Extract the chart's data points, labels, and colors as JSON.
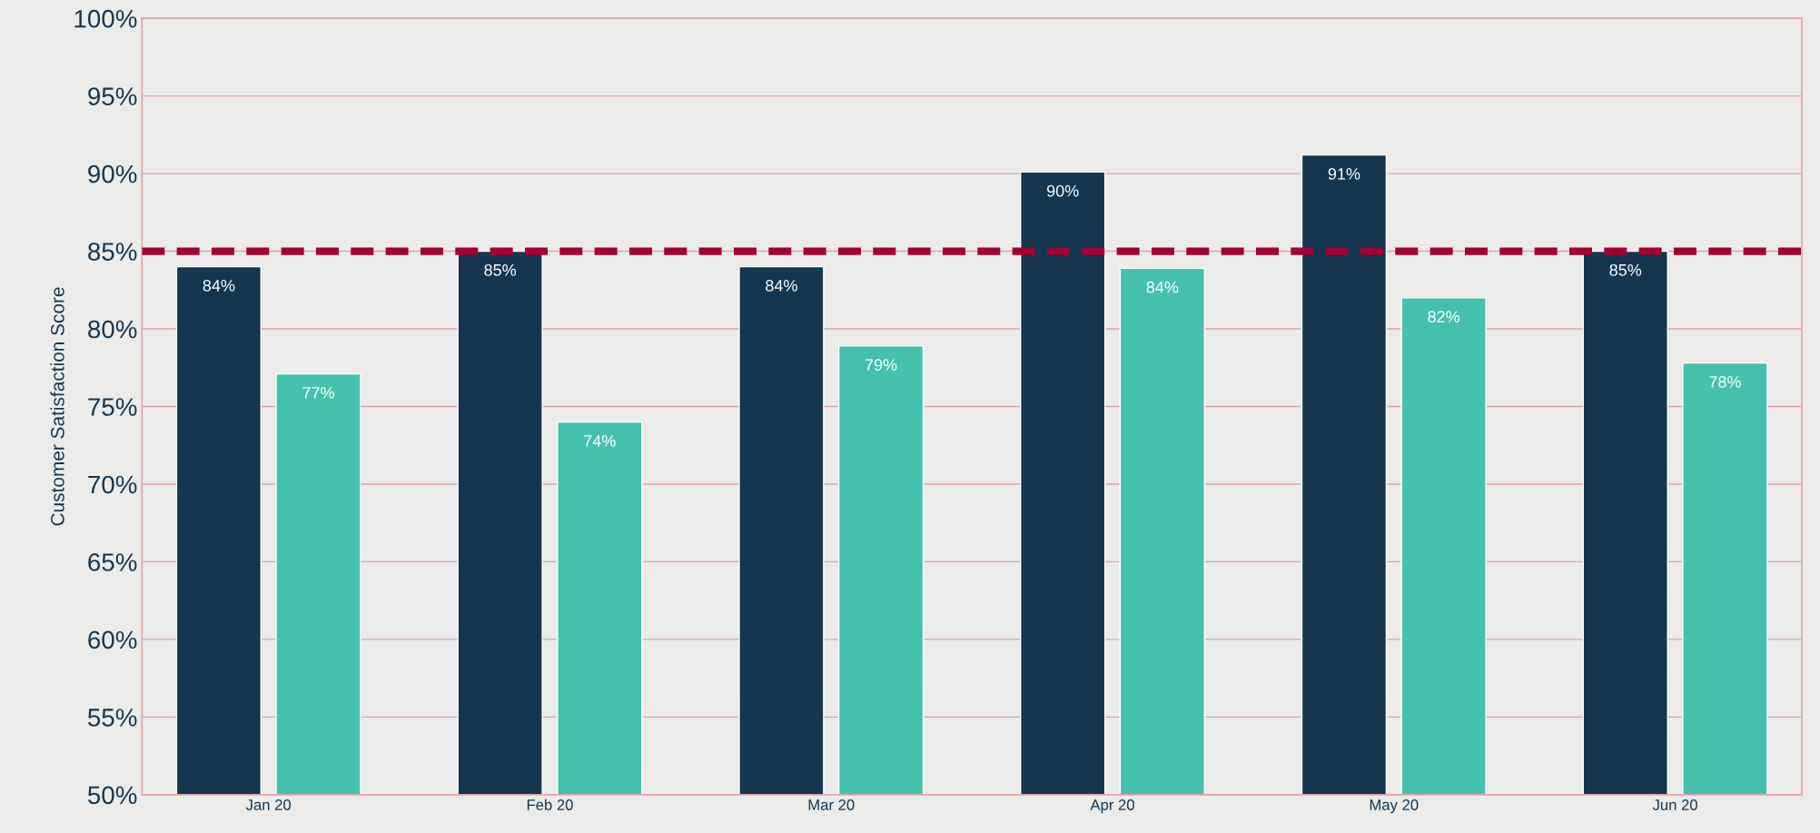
{
  "chart_data": {
    "type": "bar",
    "ylabel": "Customer Satisfaction Score",
    "categories": [
      "Jan 20",
      "Feb 20",
      "Mar 20",
      "Apr 20",
      "May 20",
      "Jun 20"
    ],
    "series": [
      {
        "color": "#14374f",
        "values": [
          84.0,
          85.0,
          84.0,
          90.1,
          91.2,
          85.0
        ],
        "value_labels": [
          "84%",
          "85%",
          "84%",
          "90%",
          "91%",
          "85%"
        ]
      },
      {
        "color": "#45c0ad",
        "values": [
          77.1,
          74.0,
          78.9,
          83.9,
          82.0,
          77.8
        ],
        "value_labels": [
          "77%",
          "74%",
          "79%",
          "84%",
          "82%",
          "78%"
        ]
      }
    ],
    "ylim": [
      50,
      100
    ],
    "yticks": [
      {
        "value": 50,
        "label": "50%"
      },
      {
        "value": 55,
        "label": "55%"
      },
      {
        "value": 60,
        "label": "60%"
      },
      {
        "value": 65,
        "label": "65%"
      },
      {
        "value": 70,
        "label": "70%"
      },
      {
        "value": 75,
        "label": "75%"
      },
      {
        "value": 80,
        "label": "80%"
      },
      {
        "value": 85,
        "label": "85%"
      },
      {
        "value": 90,
        "label": "90%"
      },
      {
        "value": 95,
        "label": "95%"
      },
      {
        "value": 100,
        "label": "100%"
      }
    ],
    "grid": "y",
    "ref_lines": [
      {
        "axis": "y",
        "value": 85,
        "color": "#a50034",
        "line_style": "dashed"
      }
    ]
  }
}
